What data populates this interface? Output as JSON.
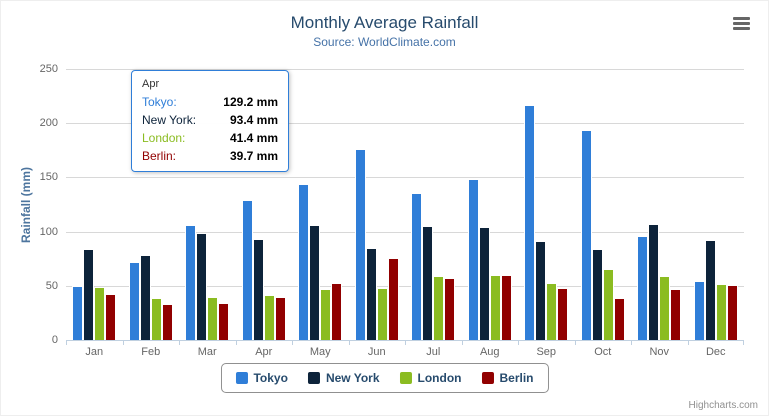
{
  "chart_data": {
    "type": "bar",
    "title": "Monthly Average Rainfall",
    "subtitle": "Source: WorldClimate.com",
    "ylabel": "Rainfall (mm)",
    "ylim": [
      0,
      250
    ],
    "ytick_interval": 50,
    "grid": true,
    "legend_position": "bottom",
    "categories": [
      "Jan",
      "Feb",
      "Mar",
      "Apr",
      "May",
      "Jun",
      "Jul",
      "Aug",
      "Sep",
      "Oct",
      "Nov",
      "Dec"
    ],
    "series": [
      {
        "name": "Tokyo",
        "color": "#2f7ed8",
        "values": [
          49.9,
          71.5,
          106.4,
          129.2,
          144.0,
          176.0,
          135.6,
          148.5,
          216.4,
          194.1,
          95.6,
          54.4
        ]
      },
      {
        "name": "New York",
        "color": "#0d233a",
        "values": [
          83.6,
          78.8,
          98.5,
          93.4,
          106.0,
          84.5,
          105.0,
          104.3,
          91.2,
          83.5,
          106.6,
          92.3
        ]
      },
      {
        "name": "London",
        "color": "#8bbc21",
        "values": [
          48.9,
          38.8,
          39.3,
          41.4,
          47.0,
          48.3,
          59.0,
          59.6,
          52.4,
          65.2,
          59.3,
          51.2
        ]
      },
      {
        "name": "Berlin",
        "color": "#910000",
        "values": [
          42.4,
          33.2,
          34.5,
          39.7,
          52.6,
          75.5,
          57.4,
          60.4,
          47.6,
          39.1,
          46.8,
          51.1
        ]
      }
    ]
  },
  "tooltip": {
    "category": "Apr",
    "border_color": "#2f7ed8",
    "rows": [
      {
        "name": "Tokyo",
        "value": "129.2 mm",
        "color": "#2f7ed8"
      },
      {
        "name": "New York",
        "value": "93.4 mm",
        "color": "#0d233a"
      },
      {
        "name": "London",
        "value": "41.4 mm",
        "color": "#8bbc21"
      },
      {
        "name": "Berlin",
        "value": "39.7 mm",
        "color": "#910000"
      }
    ]
  },
  "menu": {
    "icon": "hamburger-menu-icon"
  },
  "credits": {
    "text": "Highcharts.com"
  }
}
